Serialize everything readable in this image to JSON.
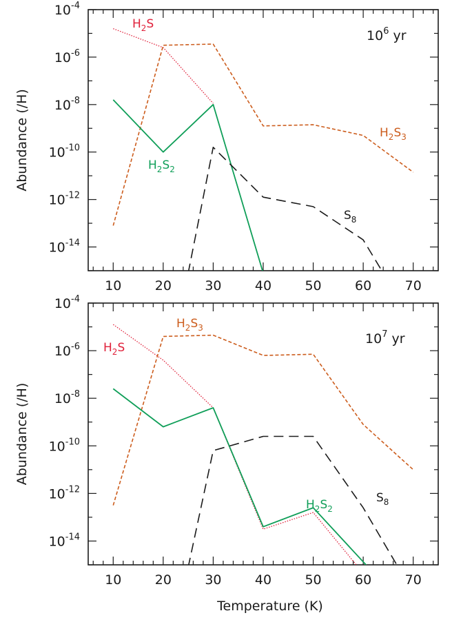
{
  "chart_data": [
    {
      "type": "line",
      "panel": "top",
      "annotation": "10",
      "annotation_exp": "6",
      "annotation_unit": " yr",
      "xlabel": "",
      "ylabel": "Abundance (/H)",
      "x_ticks": [
        "10",
        "20",
        "30",
        "40",
        "50",
        "60",
        "70"
      ],
      "y_ticks": [
        {
          "base": "10",
          "exp": "-4",
          "value": -4
        },
        {
          "base": "10",
          "exp": "-6",
          "value": -6
        },
        {
          "base": "10",
          "exp": "-8",
          "value": -8
        },
        {
          "base": "10",
          "exp": "-10",
          "value": -10
        },
        {
          "base": "10",
          "exp": "-12",
          "value": -12
        },
        {
          "base": "10",
          "exp": "-14",
          "value": -14
        }
      ],
      "xlim": [
        5,
        75
      ],
      "ylim_log10": [
        -15,
        -4
      ],
      "y_scale": "log",
      "series": [
        {
          "label_main": "H",
          "label_sub1": "2",
          "label_mid": "S",
          "label_sub2": "",
          "color": "#e0203a",
          "dash": "1.5,2",
          "width": 1.3,
          "x": [
            10,
            20,
            30
          ],
          "log10_y": [
            -4.8,
            -5.6,
            -7.95
          ]
        },
        {
          "label_main": "H",
          "label_sub1": "2",
          "label_mid": "S",
          "label_sub2": "3",
          "color": "#cc5c1c",
          "dash": "5,3",
          "width": 1.6,
          "x": [
            10,
            20,
            30,
            40,
            50,
            60,
            70
          ],
          "log10_y": [
            -13.1,
            -5.5,
            -5.45,
            -8.9,
            -8.85,
            -9.3,
            -10.85
          ]
        },
        {
          "label_main": "H",
          "label_sub1": "2",
          "label_mid": "S",
          "label_sub2": "2",
          "color": "#0f9e58",
          "dash": "",
          "width": 1.8,
          "x": [
            10,
            20,
            30,
            40
          ],
          "log10_y": [
            -7.8,
            -10.0,
            -8.0,
            -15.1
          ]
        },
        {
          "label_main": "S",
          "label_sub1": "8",
          "label_mid": "",
          "label_sub2": "",
          "color": "#1a1a1a",
          "dash": "14,8",
          "width": 1.6,
          "x": [
            25,
            30,
            40,
            50,
            60,
            64
          ],
          "log10_y": [
            -15.1,
            -9.8,
            -11.9,
            -12.3,
            -13.7,
            -15.1
          ]
        }
      ]
    },
    {
      "type": "line",
      "panel": "bottom",
      "annotation": "10",
      "annotation_exp": "7",
      "annotation_unit": " yr",
      "xlabel": "Temperature (K)",
      "ylabel": "Abundance (/H)",
      "x_ticks": [
        "10",
        "20",
        "30",
        "40",
        "50",
        "60",
        "70"
      ],
      "y_ticks": [
        {
          "base": "10",
          "exp": "-4",
          "value": -4
        },
        {
          "base": "10",
          "exp": "-6",
          "value": -6
        },
        {
          "base": "10",
          "exp": "-8",
          "value": -8
        },
        {
          "base": "10",
          "exp": "-10",
          "value": -10
        },
        {
          "base": "10",
          "exp": "-12",
          "value": -12
        },
        {
          "base": "10",
          "exp": "-14",
          "value": -14
        }
      ],
      "xlim": [
        5,
        75
      ],
      "ylim_log10": [
        -15,
        -4
      ],
      "y_scale": "log",
      "series": [
        {
          "label_main": "H",
          "label_sub1": "2",
          "label_mid": "S",
          "label_sub2": "",
          "color": "#e0203a",
          "dash": "1.5,2",
          "width": 1.3,
          "x": [
            10,
            20,
            30,
            40,
            50,
            59
          ],
          "log10_y": [
            -4.9,
            -6.4,
            -8.4,
            -13.5,
            -12.8,
            -15.1
          ]
        },
        {
          "label_main": "H",
          "label_sub1": "2",
          "label_mid": "S",
          "label_sub2": "3",
          "color": "#cc5c1c",
          "dash": "5,3",
          "width": 1.6,
          "x": [
            10,
            20,
            30,
            40,
            50,
            60,
            70
          ],
          "log10_y": [
            -12.5,
            -5.4,
            -5.35,
            -6.2,
            -6.15,
            -9.1,
            -11.0
          ]
        },
        {
          "label_main": "H",
          "label_sub1": "2",
          "label_mid": "S",
          "label_sub2": "2",
          "color": "#0f9e58",
          "dash": "",
          "width": 1.8,
          "x": [
            10,
            20,
            30,
            40,
            50,
            61
          ],
          "log10_y": [
            -7.6,
            -9.2,
            -8.4,
            -13.4,
            -12.6,
            -15.1
          ]
        },
        {
          "label_main": "S",
          "label_sub1": "8",
          "label_mid": "",
          "label_sub2": "",
          "color": "#1a1a1a",
          "dash": "14,8",
          "width": 1.6,
          "x": [
            25,
            30,
            40,
            50,
            60,
            67
          ],
          "log10_y": [
            -15.1,
            -10.2,
            -9.6,
            -9.6,
            -12.6,
            -15.1
          ]
        }
      ]
    }
  ]
}
